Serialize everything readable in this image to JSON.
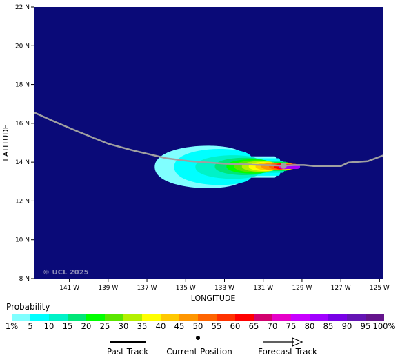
{
  "map": {
    "copyright": "© UCL 2025",
    "x_axis_title": "LONGITUDE",
    "y_axis_title": "LATITUDE",
    "lon_range_west": [
      142.8,
      124.8
    ],
    "lat_range": [
      8,
      22
    ],
    "x_ticks": [
      {
        "value": 141,
        "label": "141 W"
      },
      {
        "value": 139,
        "label": "139 W"
      },
      {
        "value": 137,
        "label": "137 W"
      },
      {
        "value": 135,
        "label": "135 W"
      },
      {
        "value": 133,
        "label": "133 W"
      },
      {
        "value": 131,
        "label": "131 W"
      },
      {
        "value": 129,
        "label": "129 W"
      },
      {
        "value": 127,
        "label": "127 W"
      },
      {
        "value": 125,
        "label": "125 W"
      }
    ],
    "y_ticks": [
      {
        "value": 8,
        "label": "8 N"
      },
      {
        "value": 10,
        "label": "10 N"
      },
      {
        "value": 12,
        "label": "12 N"
      },
      {
        "value": 14,
        "label": "14 N"
      },
      {
        "value": 16,
        "label": "16 N"
      },
      {
        "value": 18,
        "label": "18 N"
      },
      {
        "value": 20,
        "label": "20 N"
      },
      {
        "value": 22,
        "label": "22 N"
      }
    ],
    "colors": {
      "ocean": "#0a0a78",
      "track": "#a0a0a0",
      "current_position": "#a0a0a0"
    },
    "track_lonlat": [
      [
        142.8,
        16.55
      ],
      [
        141.8,
        16.1
      ],
      [
        140.5,
        15.55
      ],
      [
        139.0,
        14.95
      ],
      [
        137.7,
        14.6
      ],
      [
        136.0,
        14.2
      ],
      [
        134.8,
        14.05
      ],
      [
        133.0,
        13.92
      ],
      [
        131.0,
        13.85
      ],
      [
        130.0,
        13.82
      ],
      [
        129.4,
        13.85
      ],
      [
        128.9,
        13.85
      ],
      [
        128.4,
        13.8
      ],
      [
        127.8,
        13.8
      ],
      [
        127.0,
        13.8
      ],
      [
        126.6,
        13.98
      ],
      [
        125.6,
        14.05
      ],
      [
        124.8,
        14.35
      ]
    ],
    "current_position_lonlat": [
      129.95,
      13.82
    ]
  },
  "legend": {
    "title": "Probability",
    "labels": [
      "1%",
      "5",
      "10",
      "15",
      "20",
      "25",
      "30",
      "35",
      "40",
      "45",
      "50",
      "55",
      "60",
      "65",
      "70",
      "75",
      "80",
      "85",
      "90",
      "95",
      "100%"
    ],
    "colors": [
      "#80ffff",
      "#00ffff",
      "#00f2c8",
      "#00e678",
      "#00ff00",
      "#5ae600",
      "#b4f000",
      "#ffff00",
      "#ffc800",
      "#ff9600",
      "#ff6400",
      "#ff3200",
      "#ff0000",
      "#d2006e",
      "#e600c8",
      "#c800ff",
      "#a000ff",
      "#7800e6",
      "#6414b4",
      "#64148c"
    ]
  },
  "key": {
    "past_track": "Past Track",
    "current_position": "Current Position",
    "forecast_track": "Forecast Track"
  }
}
